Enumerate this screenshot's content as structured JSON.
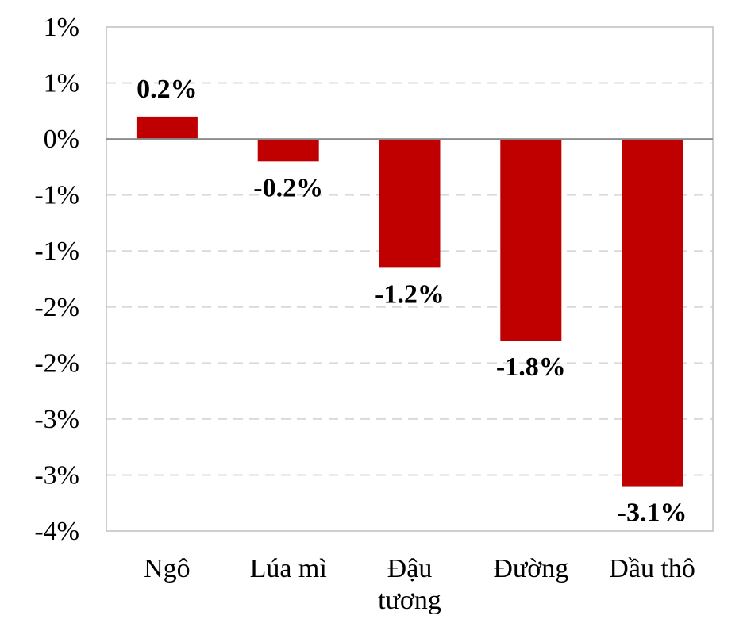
{
  "chart_data": {
    "type": "bar",
    "categories": [
      "Ngô",
      "Lúa mì",
      "Đậu\ntương",
      "Đường",
      "Dầu thô"
    ],
    "values": [
      0.2,
      -0.2,
      -1.15,
      -1.8,
      -3.1
    ],
    "data_labels": [
      "0.2%",
      "-0.2%",
      "-1.2%",
      "-1.8%",
      "-3.1%"
    ],
    "ylim": [
      -3.5,
      1.0
    ],
    "y_ticks": [
      1.0,
      0.5,
      0.0,
      -0.5,
      -1.0,
      -1.5,
      -2.0,
      -2.5,
      -3.0,
      -3.5
    ],
    "y_tick_labels": [
      "1%",
      "1%",
      "0%",
      "-1%",
      "-1%",
      "-2%",
      "-2%",
      "-3%",
      "-3%",
      "-4%"
    ],
    "grid": true,
    "title": "",
    "xlabel": "",
    "ylabel": "",
    "bar_color": "#c00000"
  }
}
